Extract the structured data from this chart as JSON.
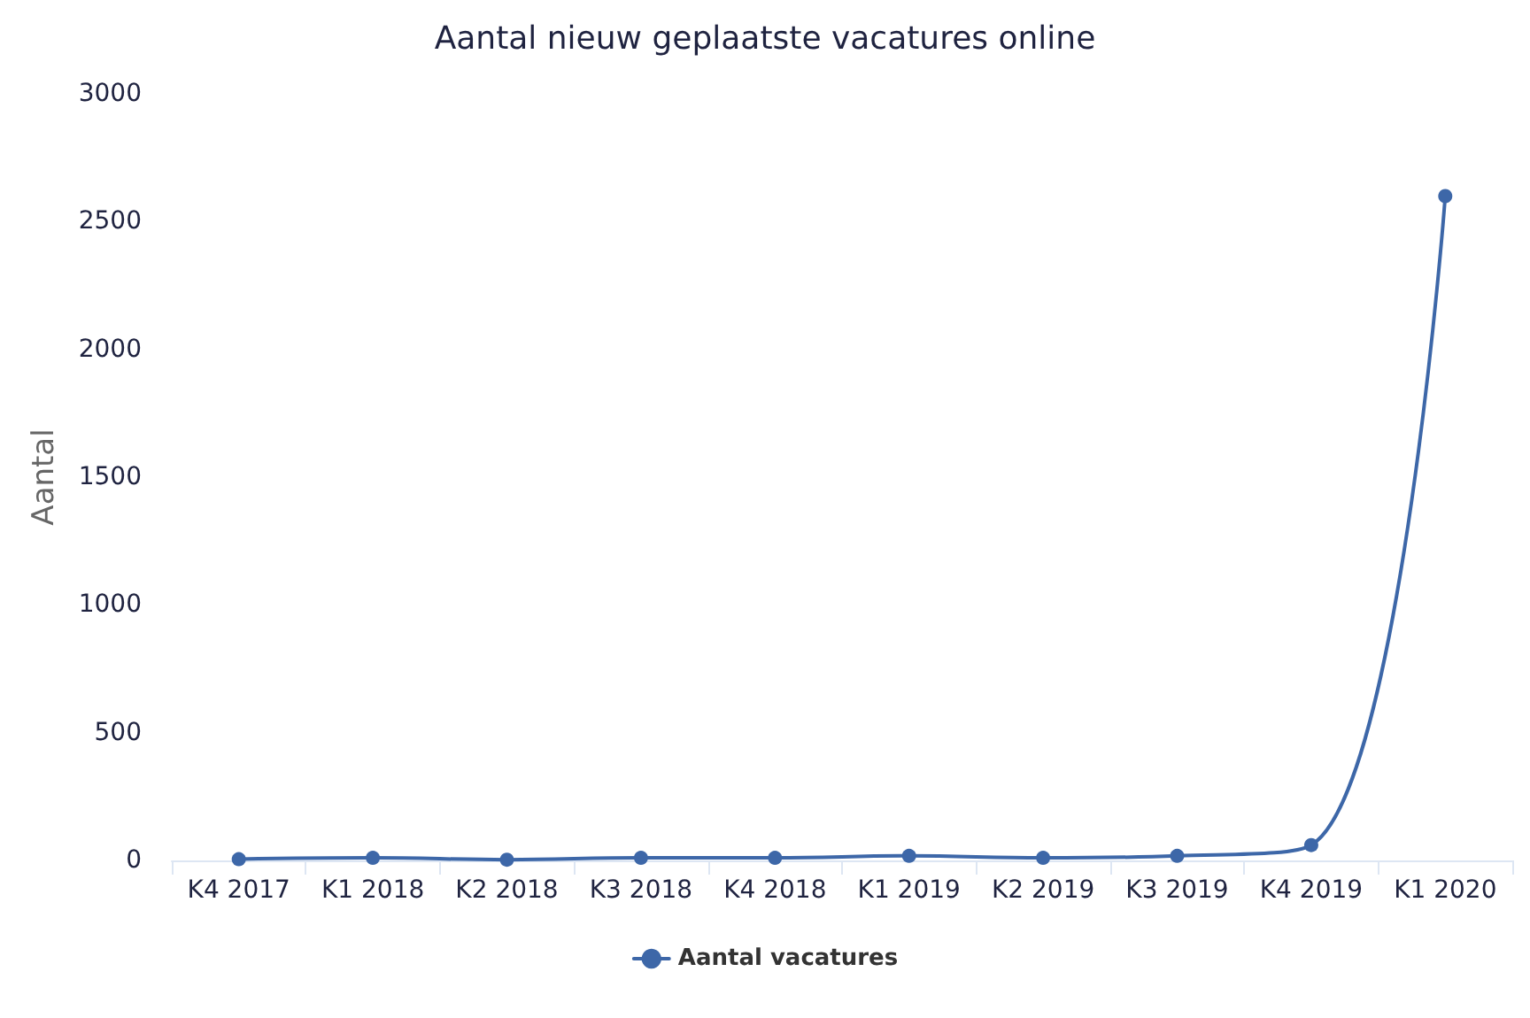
{
  "chart_data": {
    "type": "line",
    "title": "Aantal nieuw geplaatste vacatures online",
    "ylabel": "Aantal",
    "categories": [
      "K4 2017",
      "K1 2018",
      "K2 2018",
      "K3 2018",
      "K4 2018",
      "K1 2019",
      "K2 2019",
      "K3 2019",
      "K4 2019",
      "K1 2020"
    ],
    "series": [
      {
        "name": "Aantal vacatures",
        "color": "#3d67a8",
        "values": [
          5,
          10,
          3,
          10,
          10,
          18,
          10,
          18,
          60,
          2600
        ]
      }
    ],
    "ylim": [
      0,
      3000
    ],
    "yticks": [
      0,
      500,
      1000,
      1500,
      2000,
      2500,
      3000
    ],
    "grid": false,
    "legend": "bottom",
    "marker": "circle",
    "line_style": "solid"
  }
}
